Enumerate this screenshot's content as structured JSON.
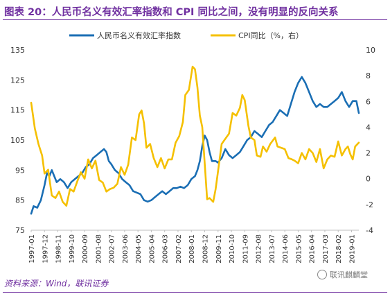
{
  "figure": {
    "title": "图表 20：人民币名义有效汇率指数和 CPI 同比之间，没有明显的反向关系",
    "source": "资料来源：Wind，联讯证券",
    "watermark": "联讯麒麟堂"
  },
  "chart_data": {
    "type": "line",
    "x_ticks": [
      "1997-01",
      "1997-12",
      "1998-11",
      "1999-10",
      "2000-09",
      "2001-08",
      "2002-07",
      "2003-06",
      "2004-05",
      "2005-04",
      "2006-03",
      "2007-02",
      "2008-01",
      "2008-12",
      "2009-11",
      "2010-10",
      "2011-09",
      "2012-08",
      "2013-07",
      "2014-06",
      "2015-05",
      "2016-04",
      "2017-03",
      "2018-02",
      "2019-01"
    ],
    "x_range": [
      "1997-01",
      "2019-07"
    ],
    "y_left": {
      "ticks": [
        75,
        85,
        95,
        105,
        115,
        125,
        135
      ],
      "range": [
        75,
        135
      ]
    },
    "y_right": {
      "ticks": [
        -4,
        -2,
        0,
        2,
        4,
        6,
        8,
        10
      ],
      "range": [
        -4,
        10
      ]
    },
    "legend_position": "top-center",
    "grid": false,
    "series": [
      {
        "name": "人民币名义有效汇率指数",
        "axis": "left",
        "color": "#1a6eb4",
        "points": [
          [
            "1997-01",
            80.5
          ],
          [
            "1997-03",
            83
          ],
          [
            "1997-06",
            82.5
          ],
          [
            "1997-09",
            85
          ],
          [
            "1997-12",
            90
          ],
          [
            "1998-02",
            94
          ],
          [
            "1998-04",
            93
          ],
          [
            "1998-06",
            95
          ],
          [
            "1998-08",
            93
          ],
          [
            "1998-10",
            91
          ],
          [
            "1999-01",
            92
          ],
          [
            "1999-04",
            91
          ],
          [
            "1999-07",
            89
          ],
          [
            "1999-10",
            91
          ],
          [
            "2000-01",
            92
          ],
          [
            "2000-04",
            93
          ],
          [
            "2000-07",
            94
          ],
          [
            "2000-10",
            96
          ],
          [
            "2001-01",
            97
          ],
          [
            "2001-04",
            99
          ],
          [
            "2001-07",
            100
          ],
          [
            "2001-10",
            101
          ],
          [
            "2002-01",
            102
          ],
          [
            "2002-03",
            101
          ],
          [
            "2002-05",
            98
          ],
          [
            "2002-07",
            97
          ],
          [
            "2002-10",
            95
          ],
          [
            "2003-01",
            94
          ],
          [
            "2003-04",
            92
          ],
          [
            "2003-07",
            91
          ],
          [
            "2003-10",
            90
          ],
          [
            "2004-01",
            88
          ],
          [
            "2004-04",
            87.5
          ],
          [
            "2004-07",
            87
          ],
          [
            "2004-10",
            85
          ],
          [
            "2005-01",
            84.5
          ],
          [
            "2005-04",
            85
          ],
          [
            "2005-07",
            86
          ],
          [
            "2005-10",
            87
          ],
          [
            "2006-01",
            88
          ],
          [
            "2006-04",
            87
          ],
          [
            "2006-07",
            88
          ],
          [
            "2006-10",
            89
          ],
          [
            "2007-01",
            89
          ],
          [
            "2007-04",
            89.5
          ],
          [
            "2007-07",
            89
          ],
          [
            "2007-10",
            90
          ],
          [
            "2008-01",
            92
          ],
          [
            "2008-04",
            93
          ],
          [
            "2008-06",
            95
          ],
          [
            "2008-08",
            98
          ],
          [
            "2008-10",
            103
          ],
          [
            "2008-12",
            106.5
          ],
          [
            "2009-02",
            105
          ],
          [
            "2009-04",
            101
          ],
          [
            "2009-06",
            98
          ],
          [
            "2009-09",
            98
          ],
          [
            "2009-11",
            97.5
          ],
          [
            "2010-02",
            99
          ],
          [
            "2010-05",
            102
          ],
          [
            "2010-08",
            100
          ],
          [
            "2010-11",
            99
          ],
          [
            "2011-02",
            100
          ],
          [
            "2011-05",
            101
          ],
          [
            "2011-08",
            103
          ],
          [
            "2011-11",
            105
          ],
          [
            "2012-02",
            106
          ],
          [
            "2012-05",
            108
          ],
          [
            "2012-08",
            107
          ],
          [
            "2012-11",
            106
          ],
          [
            "2013-02",
            108
          ],
          [
            "2013-05",
            110
          ],
          [
            "2013-08",
            111
          ],
          [
            "2013-11",
            113
          ],
          [
            "2014-02",
            115
          ],
          [
            "2014-05",
            114
          ],
          [
            "2014-08",
            113
          ],
          [
            "2014-11",
            117
          ],
          [
            "2015-02",
            121
          ],
          [
            "2015-05",
            124
          ],
          [
            "2015-08",
            126
          ],
          [
            "2015-11",
            124
          ],
          [
            "2016-02",
            121
          ],
          [
            "2016-05",
            118
          ],
          [
            "2016-08",
            116
          ],
          [
            "2016-11",
            117
          ],
          [
            "2017-02",
            116
          ],
          [
            "2017-05",
            116
          ],
          [
            "2017-08",
            117
          ],
          [
            "2017-11",
            118
          ],
          [
            "2018-02",
            119
          ],
          [
            "2018-05",
            121
          ],
          [
            "2018-08",
            118
          ],
          [
            "2018-11",
            116
          ],
          [
            "2019-02",
            118
          ],
          [
            "2019-05",
            118
          ],
          [
            "2019-07",
            114
          ]
        ]
      },
      {
        "name": "CPI同比（%，右）",
        "axis": "right",
        "color": "#f5c000",
        "points": [
          [
            "1997-01",
            5.9
          ],
          [
            "1997-04",
            3.9
          ],
          [
            "1997-07",
            2.7
          ],
          [
            "1997-10",
            1.8
          ],
          [
            "1997-12",
            0.4
          ],
          [
            "1998-03",
            0.7
          ],
          [
            "1998-06",
            -1.3
          ],
          [
            "1998-09",
            -1.5
          ],
          [
            "1998-12",
            -1
          ],
          [
            "1999-03",
            -1.8
          ],
          [
            "1999-06",
            -2.1
          ],
          [
            "1999-09",
            -0.8
          ],
          [
            "1999-12",
            -1
          ],
          [
            "2000-03",
            -0.2
          ],
          [
            "2000-06",
            0.5
          ],
          [
            "2000-09",
            0
          ],
          [
            "2000-12",
            1.5
          ],
          [
            "2001-03",
            0.8
          ],
          [
            "2001-06",
            1.4
          ],
          [
            "2001-09",
            -0.1
          ],
          [
            "2001-12",
            -0.3
          ],
          [
            "2002-03",
            -1
          ],
          [
            "2002-06",
            -0.8
          ],
          [
            "2002-09",
            -0.7
          ],
          [
            "2002-12",
            -0.4
          ],
          [
            "2003-03",
            0.9
          ],
          [
            "2003-06",
            0.3
          ],
          [
            "2003-09",
            1.1
          ],
          [
            "2003-12",
            3.2
          ],
          [
            "2004-03",
            3
          ],
          [
            "2004-06",
            5
          ],
          [
            "2004-08",
            5.3
          ],
          [
            "2004-10",
            4.3
          ],
          [
            "2004-12",
            2.4
          ],
          [
            "2005-03",
            2.7
          ],
          [
            "2005-06",
            1.6
          ],
          [
            "2005-09",
            0.9
          ],
          [
            "2005-12",
            1.6
          ],
          [
            "2006-03",
            0.8
          ],
          [
            "2006-06",
            1.5
          ],
          [
            "2006-09",
            1.5
          ],
          [
            "2006-12",
            2.8
          ],
          [
            "2007-03",
            3.3
          ],
          [
            "2007-06",
            4.4
          ],
          [
            "2007-08",
            6.5
          ],
          [
            "2007-11",
            6.9
          ],
          [
            "2008-02",
            8.7
          ],
          [
            "2008-04",
            8.5
          ],
          [
            "2008-06",
            7.1
          ],
          [
            "2008-08",
            4.9
          ],
          [
            "2008-10",
            4
          ],
          [
            "2008-12",
            1.2
          ],
          [
            "2009-02",
            -1.6
          ],
          [
            "2009-04",
            -1.5
          ],
          [
            "2009-07",
            -1.8
          ],
          [
            "2009-09",
            -0.8
          ],
          [
            "2009-11",
            0.6
          ],
          [
            "2010-02",
            2.7
          ],
          [
            "2010-05",
            3.1
          ],
          [
            "2010-08",
            3.5
          ],
          [
            "2010-11",
            5.1
          ],
          [
            "2011-02",
            4.9
          ],
          [
            "2011-05",
            5.5
          ],
          [
            "2011-07",
            6.5
          ],
          [
            "2011-09",
            6.1
          ],
          [
            "2011-12",
            4.1
          ],
          [
            "2012-02",
            3.2
          ],
          [
            "2012-05",
            3
          ],
          [
            "2012-07",
            1.8
          ],
          [
            "2012-10",
            1.7
          ],
          [
            "2012-12",
            2.5
          ],
          [
            "2013-03",
            2.1
          ],
          [
            "2013-06",
            2.7
          ],
          [
            "2013-10",
            3.2
          ],
          [
            "2013-12",
            2.5
          ],
          [
            "2014-03",
            2.4
          ],
          [
            "2014-06",
            2.3
          ],
          [
            "2014-09",
            1.6
          ],
          [
            "2014-12",
            1.5
          ],
          [
            "2015-02",
            1.4
          ],
          [
            "2015-05",
            1.2
          ],
          [
            "2015-08",
            2
          ],
          [
            "2015-11",
            1.5
          ],
          [
            "2016-02",
            2.3
          ],
          [
            "2016-05",
            2
          ],
          [
            "2016-08",
            1.3
          ],
          [
            "2016-11",
            2.3
          ],
          [
            "2017-02",
            0.8
          ],
          [
            "2017-05",
            1.5
          ],
          [
            "2017-08",
            1.8
          ],
          [
            "2017-11",
            1.7
          ],
          [
            "2018-02",
            2.9
          ],
          [
            "2018-05",
            1.8
          ],
          [
            "2018-08",
            2.3
          ],
          [
            "2018-10",
            2.5
          ],
          [
            "2018-12",
            1.9
          ],
          [
            "2019-02",
            1.5
          ],
          [
            "2019-04",
            2.5
          ],
          [
            "2019-07",
            2.8
          ]
        ]
      }
    ]
  }
}
